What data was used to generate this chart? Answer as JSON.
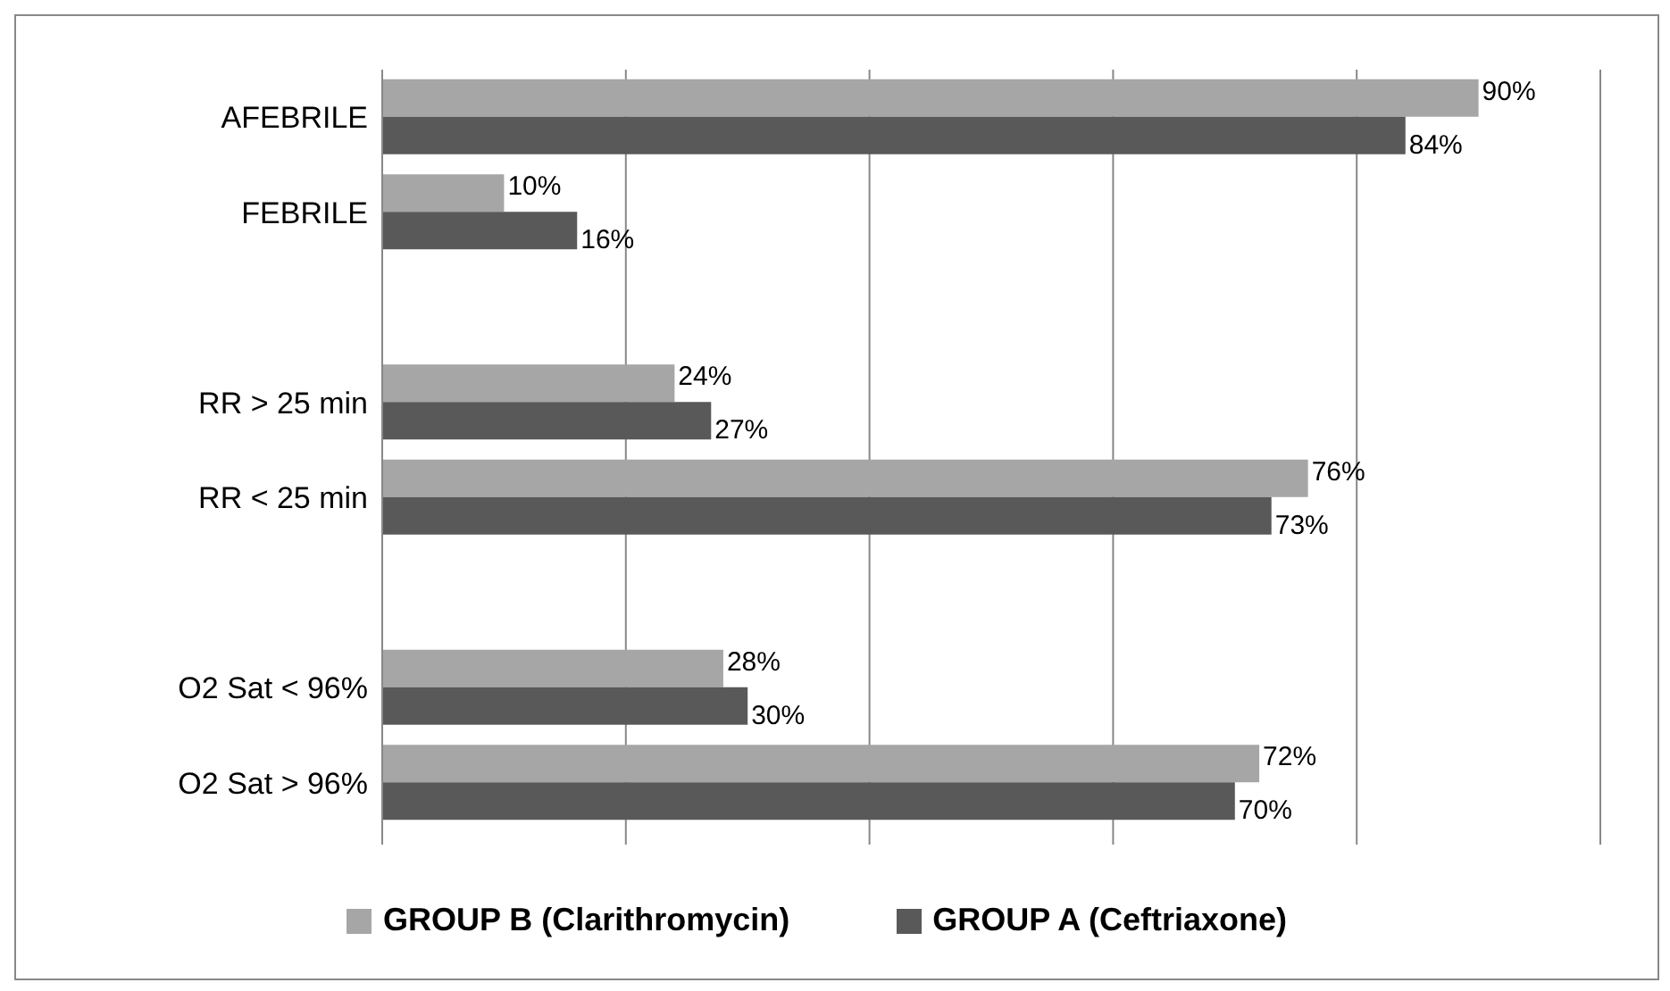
{
  "chart_data": {
    "type": "bar",
    "orientation": "horizontal",
    "categories": [
      "AFEBRILE",
      "FEBRILE",
      null,
      "RR > 25 min",
      "RR < 25 min",
      null,
      "O2 Sat < 96%",
      "O2 Sat > 96%"
    ],
    "series": [
      {
        "name": "GROUP B (Clarithromycin)",
        "color": "#a6a6a6",
        "values": [
          90,
          10,
          null,
          24,
          76,
          null,
          28,
          72
        ],
        "value_labels": [
          "90%",
          "10%",
          null,
          "24%",
          "76%",
          null,
          "28%",
          "72%"
        ]
      },
      {
        "name": "GROUP A (Ceftriaxone)",
        "color": "#595959",
        "values": [
          84,
          16,
          null,
          27,
          73,
          null,
          30,
          70
        ],
        "value_labels": [
          "84%",
          "16%",
          null,
          "27%",
          "73%",
          null,
          "30%",
          "70%"
        ]
      }
    ],
    "xlim": [
      0,
      100
    ],
    "xticks": [
      {
        "value": 0,
        "label": null
      },
      {
        "value": 20,
        "label": null
      },
      {
        "value": 40,
        "label": null
      },
      {
        "value": 60,
        "label": null
      },
      {
        "value": 80,
        "label": null
      },
      {
        "value": 100,
        "label": null
      }
    ],
    "tick_labels": "y",
    "grid": "x",
    "legend": "bottom"
  }
}
